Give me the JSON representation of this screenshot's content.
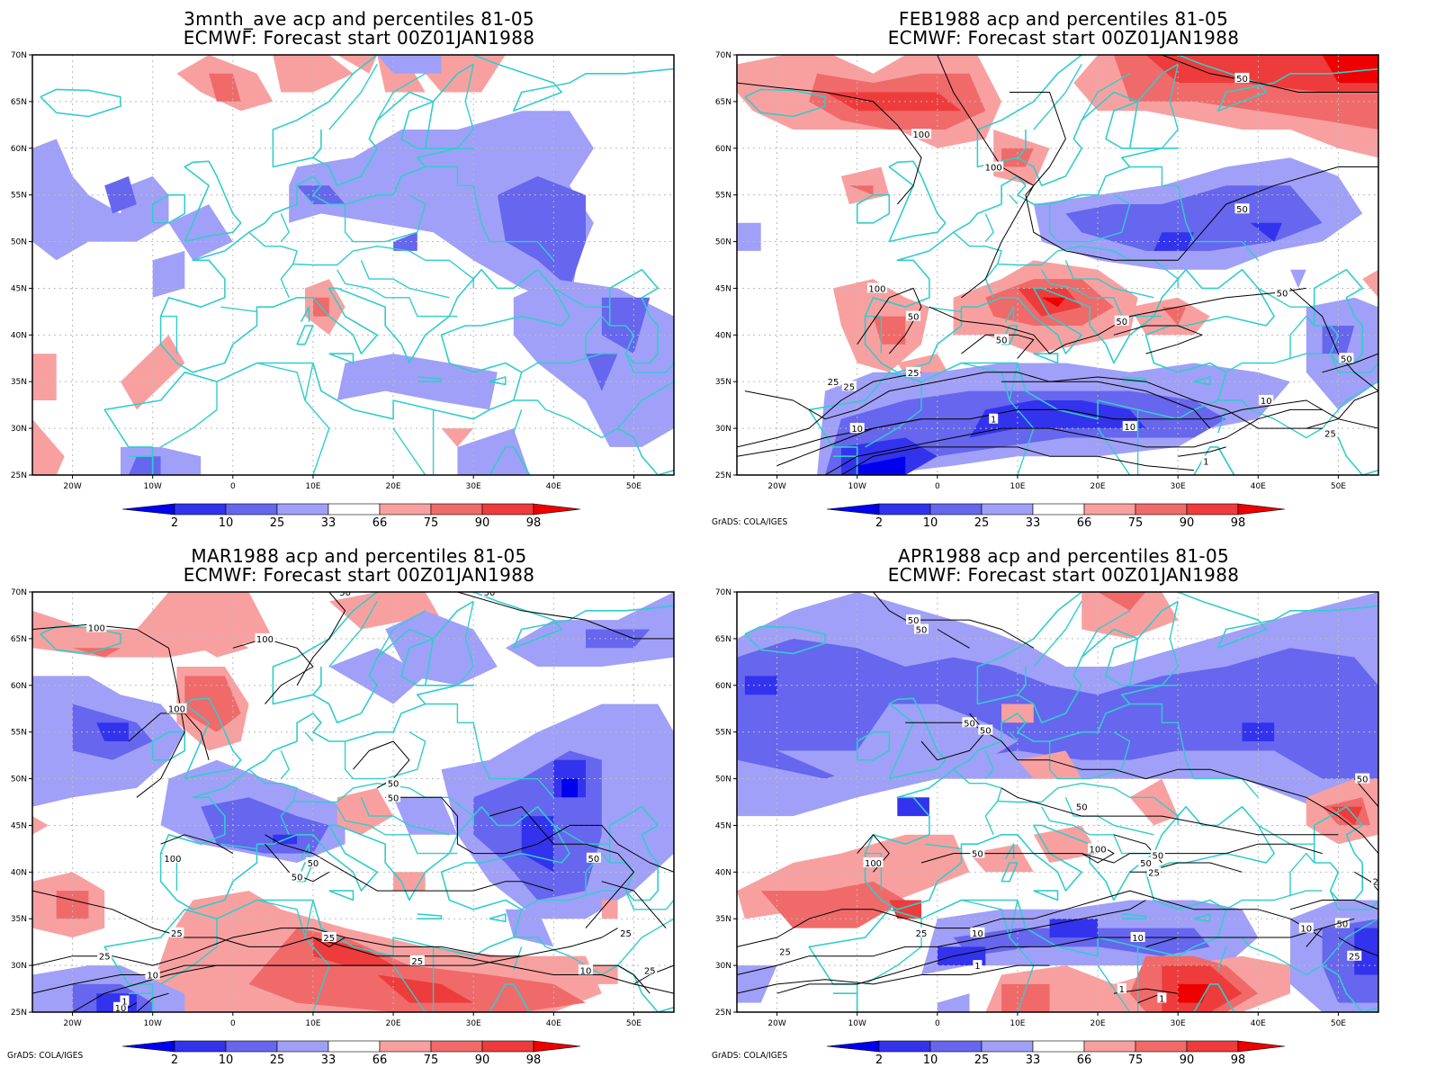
{
  "colors": {
    "pct_2": "#0000ee",
    "pct_10": "#3333ee",
    "pct_25": "#6666ee",
    "pct_33": "#a0a0f8",
    "pct_66": "#f8a0a0",
    "pct_75": "#f06a6a",
    "pct_90": "#ee3b3b",
    "pct_98": "#ee0000",
    "coastline": "#33cccc",
    "contour": "#000000",
    "grid": "#bbbbbb"
  },
  "axes": {
    "lat_labels": [
      "70N",
      "65N",
      "60N",
      "55N",
      "50N",
      "45N",
      "40N",
      "35N",
      "30N",
      "25N"
    ],
    "lon_labels": [
      "20W",
      "10W",
      "0",
      "10E",
      "20E",
      "30E",
      "40E",
      "50E"
    ],
    "lat_range": [
      25,
      70
    ],
    "lon_range": [
      -25,
      55
    ]
  },
  "colorbar": {
    "labels": [
      "2",
      "10",
      "25",
      "33",
      "66",
      "75",
      "90",
      "98"
    ]
  },
  "credit": "GrADS: COLA/IGES",
  "panels": [
    {
      "id": "panel-3mnth",
      "title_line1": "3mnth_ave acp and percentiles 81-05",
      "title_line2": "ECMWF: Forecast start 00Z01JAN1988",
      "show_credit": false,
      "contours": []
    },
    {
      "id": "panel-feb",
      "title_line1": "FEB1988 acp and percentiles 81-05",
      "title_line2": "ECMWF: Forecast start 00Z01JAN1988",
      "show_credit": true,
      "contours": [
        "100",
        "100",
        "100",
        "50",
        "50",
        "50",
        "50",
        "50",
        "25",
        "25",
        "25",
        "10",
        "10",
        "10",
        "1",
        "1",
        "50",
        "25",
        "50"
      ]
    },
    {
      "id": "panel-mar",
      "title_line1": "MAR1988 acp and percentiles 81-05",
      "title_line2": "ECMWF: Forecast start 00Z01JAN1988",
      "show_credit": true,
      "contours": [
        "100",
        "100",
        "100",
        "50",
        "50",
        "50",
        "50",
        "50",
        "25",
        "25",
        "25",
        "10",
        "10",
        "1",
        "100",
        "50",
        "25",
        "50",
        "25",
        "10",
        "25"
      ]
    },
    {
      "id": "panel-apr",
      "title_line1": "APR1988 acp and percentiles 81-05",
      "title_line2": "ECMWF: Forecast start 00Z01JAN1988",
      "show_credit": true,
      "contours": [
        "50",
        "50",
        "50",
        "50",
        "50",
        "50",
        "50",
        "100",
        "50",
        "100",
        "25",
        "25",
        "10",
        "10",
        "1",
        "1",
        "1",
        "25",
        "50",
        "25",
        "25",
        "10",
        "50"
      ]
    }
  ]
}
